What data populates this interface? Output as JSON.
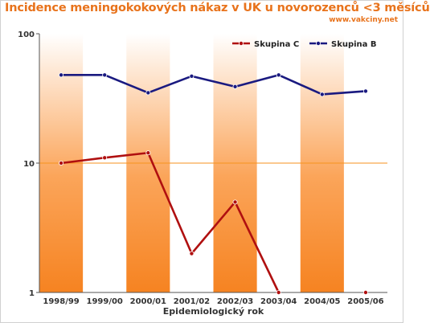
{
  "title": "Incidence meningokokových nákaz v UK u novorozenců <3 měsíců",
  "website": "www.vakciny.net",
  "chart_data": {
    "type": "line",
    "title": "Incidence meningokokových nákaz v UK u novorozenců <3 měsíců",
    "xlabel": "Epidemiologický rok",
    "ylabel": "",
    "y_scale": "log",
    "ylim": [
      1,
      100
    ],
    "y_ticks": [
      1,
      10,
      100
    ],
    "grid": "horizontal line at 10",
    "legend_position": "top-right",
    "categories": [
      "1998/99",
      "1999/00",
      "2000/01",
      "2001/02",
      "2002/03",
      "2003/04",
      "2004/05",
      "2005/06"
    ],
    "series": [
      {
        "name": "Skupina C",
        "color": "#b01010",
        "values": [
          10,
          11,
          12,
          2,
          5,
          1,
          null,
          1
        ]
      },
      {
        "name": "Skupina B",
        "color": "#1a1a80",
        "values": [
          48,
          48,
          35,
          47,
          39,
          48,
          34,
          36
        ]
      }
    ],
    "band_color": "#f7921e"
  }
}
